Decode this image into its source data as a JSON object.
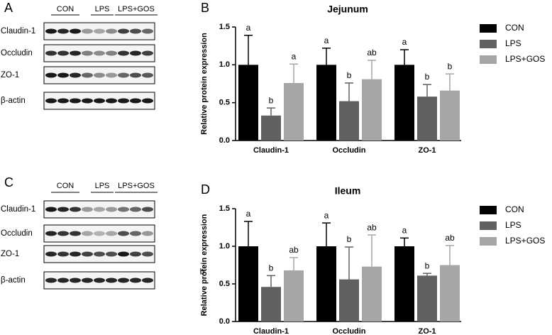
{
  "blots": [
    {
      "label": "A",
      "groups": [
        "CON",
        "LPS",
        "LPS+GOS"
      ],
      "rows": [
        "Claudin-1",
        "Occludin",
        "ZO-1",
        "β-actin"
      ]
    },
    {
      "label": "C",
      "groups": [
        "CON",
        "LPS",
        "LPS+GOS"
      ],
      "rows": [
        "Claudin-1",
        "Occludin",
        "ZO-1",
        "β-actin"
      ]
    }
  ],
  "chart_data": [
    {
      "type": "bar",
      "panel_label": "B",
      "title": "Jejunum",
      "y_label": "Relative protein expression",
      "categories": [
        "Claudin-1",
        "Occludin",
        "ZO-1"
      ],
      "series": [
        {
          "name": "CON",
          "color": "#000000",
          "values": [
            1.0,
            1.0,
            1.0
          ],
          "errors": [
            0.39,
            0.22,
            0.2
          ],
          "annotations": [
            "a",
            "a",
            "a"
          ]
        },
        {
          "name": "LPS",
          "color": "#606060",
          "values": [
            0.33,
            0.52,
            0.58
          ],
          "errors": [
            0.1,
            0.24,
            0.16
          ],
          "annotations": [
            "b",
            "b",
            "b"
          ]
        },
        {
          "name": "LPS+GOS",
          "color": "#a6a6a6",
          "values": [
            0.76,
            0.81,
            0.66
          ],
          "errors": [
            0.25,
            0.25,
            0.22
          ],
          "annotations": [
            "a",
            "ab",
            "b"
          ]
        }
      ],
      "ylim": [
        0,
        1.5
      ],
      "yticks": [
        {
          "value": 0,
          "label": "0.0"
        },
        0.5,
        {
          "value": 1,
          "label": "1.0"
        },
        1.5
      ],
      "legend": "right"
    },
    {
      "type": "bar",
      "panel_label": "D",
      "title": "Ileum",
      "y_label": "Relative protein expression",
      "categories": [
        "Claudin-1",
        "Occludin",
        "ZO-1"
      ],
      "series": [
        {
          "name": "CON",
          "color": "#000000",
          "values": [
            1.0,
            1.0,
            1.0
          ],
          "errors": [
            0.33,
            0.31,
            0.11
          ],
          "annotations": [
            "a",
            "a",
            "a"
          ]
        },
        {
          "name": "LPS",
          "color": "#606060",
          "values": [
            0.46,
            0.56,
            0.61
          ],
          "errors": [
            0.15,
            0.43,
            0.03
          ],
          "annotations": [
            "b",
            "b",
            "b"
          ]
        },
        {
          "name": "LPS+GOS",
          "color": "#a6a6a6",
          "values": [
            0.68,
            0.73,
            0.75
          ],
          "errors": [
            0.17,
            0.42,
            0.26
          ],
          "annotations": [
            "ab",
            "ab",
            "ab"
          ]
        }
      ],
      "ylim": [
        0,
        1.5
      ],
      "yticks": [
        {
          "value": 0,
          "label": "0.0"
        },
        0.5,
        {
          "value": 1,
          "label": "1.0"
        },
        1.5
      ],
      "side_annotation": "b",
      "legend": "right"
    }
  ]
}
